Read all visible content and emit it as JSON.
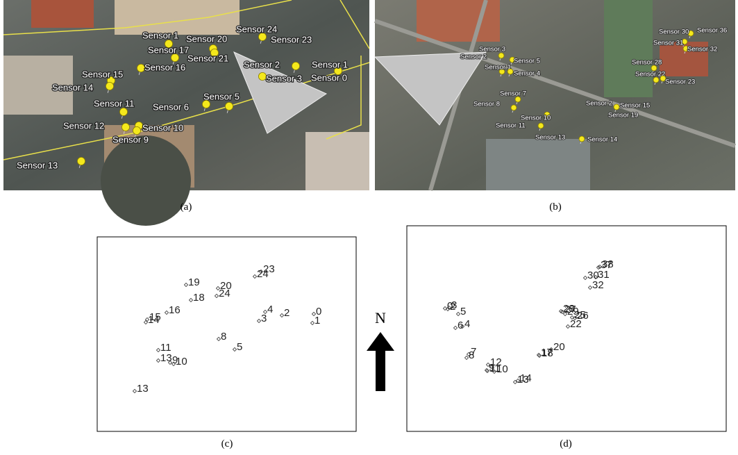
{
  "compass": "N",
  "panels": [
    {
      "caption": "(a)",
      "labels": [
        "Sensor 1",
        "Sensor 20",
        "Sensor 24",
        "Sensor 23",
        "Sensor 17",
        "Sensor 21",
        "Sensor 16",
        "Sensor 15",
        "Sensor 14",
        "Sensor 2",
        "Sensor 1",
        "Sensor 3",
        "Sensor 0",
        "Sensor 5",
        "Sensor 6",
        "Sensor 11",
        "Sensor 12",
        "Sensor 10",
        "Sensor 9",
        "Sensor 13"
      ]
    },
    {
      "caption": "(b)",
      "labels": [
        "Sensor 3",
        "Sensor 2",
        "Sensor 5",
        "Sensor 1",
        "Sensor 4",
        "Sensor 7",
        "Sensor 8",
        "Sensor 10",
        "Sensor 11",
        "Sensor 13",
        "Sensor 14",
        "Sensor 30",
        "Sensor 36",
        "Sensor 31",
        "Sensor 32",
        "Sensor 28",
        "Sensor 22",
        "Sensor 23",
        "Sensor 2",
        "Sensor 15",
        "Sensor 19"
      ]
    },
    {
      "caption": "(c)",
      "points": [
        "19",
        "18",
        "20",
        "24",
        "24",
        "23",
        "16",
        "14",
        "15",
        "4",
        "3",
        "2",
        "0",
        "1",
        "8",
        "5",
        "11",
        "13",
        "9",
        "10",
        "13"
      ]
    },
    {
      "caption": "(d)",
      "points": [
        "0",
        "2",
        "3",
        "5",
        "6",
        "4",
        "7",
        "8",
        "12",
        "9",
        "11",
        "10",
        "13",
        "14",
        "17",
        "18",
        "20",
        "28",
        "27",
        "29",
        "25",
        "26",
        "22",
        "37",
        "38",
        "30",
        "31",
        "32"
      ]
    }
  ]
}
